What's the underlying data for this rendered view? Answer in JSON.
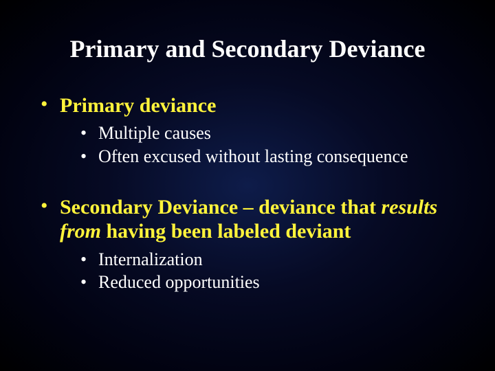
{
  "title": "Primary and Secondary Deviance",
  "bullets": [
    {
      "text": "Primary deviance",
      "sub": [
        "Multiple causes",
        "Often excused without lasting consequence"
      ]
    },
    {
      "text_prefix": "Secondary Deviance – deviance that ",
      "text_italic": "results from",
      "text_suffix": " having been labeled deviant",
      "sub": [
        "Internalization",
        "Reduced opportunities"
      ]
    }
  ],
  "colors": {
    "heading_accent": "#fff33b",
    "body_text": "#ffffff",
    "bg_center": "#0e1c4a",
    "bg_outer": "#000000"
  },
  "typography": {
    "title_fontsize": 36,
    "level1_fontsize": 30,
    "level2_fontsize": 26,
    "font_family": "Times New Roman"
  }
}
